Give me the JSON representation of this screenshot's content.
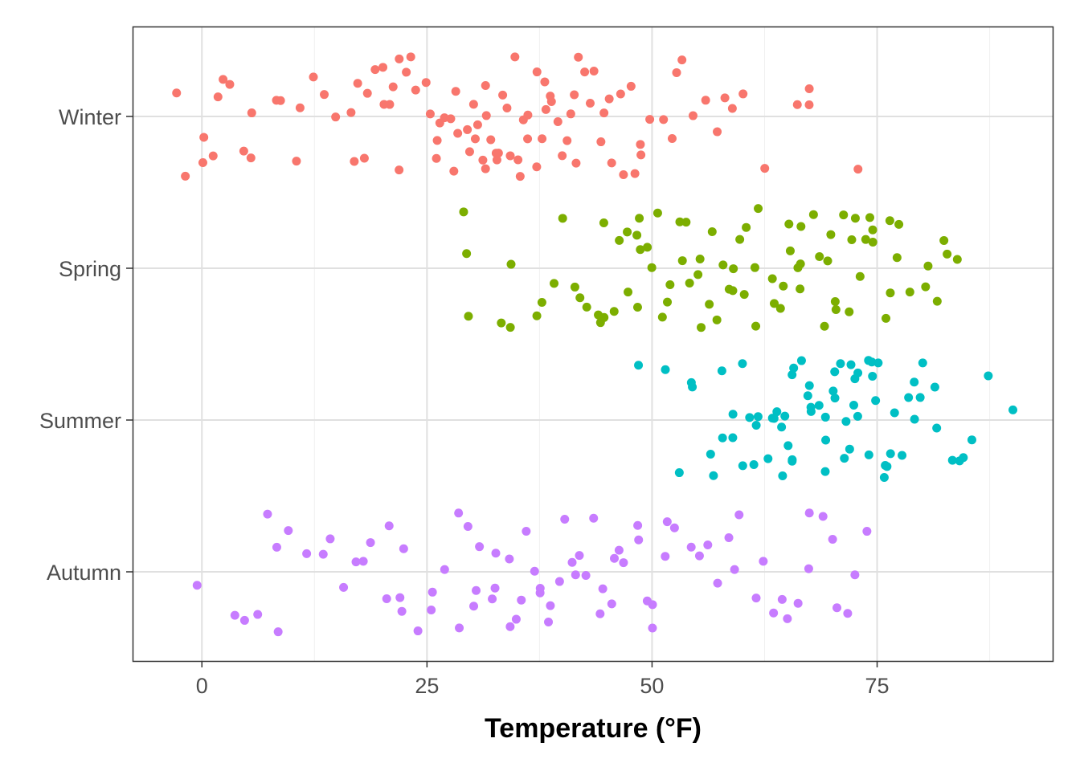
{
  "chart_data": {
    "type": "scatter",
    "subtype": "jittered strip plot",
    "title": "",
    "xlabel": "Temperature (°F)",
    "ylabel": "",
    "xlim": [
      -7.7,
      94.5
    ],
    "xticks": [
      0,
      25,
      50,
      75
    ],
    "xtick_labels": [
      "0",
      "25",
      "50",
      "75"
    ],
    "categories": [
      "Winter",
      "Spring",
      "Summer",
      "Autumn"
    ],
    "grid": true,
    "legend": "none",
    "series": [
      {
        "name": "Winter",
        "color": "#F8766D",
        "values": [
          -3,
          -2,
          0,
          0.5,
          1,
          1.5,
          2,
          3,
          5,
          5,
          6,
          8,
          9,
          10,
          11,
          12,
          14,
          15,
          16,
          17,
          17,
          18,
          18,
          19,
          20,
          20,
          21,
          21,
          22,
          22,
          23,
          23,
          24,
          25,
          25,
          26,
          26,
          27,
          27,
          28,
          28,
          28,
          29,
          29,
          30,
          30,
          30,
          31,
          31,
          31,
          32,
          32,
          32,
          33,
          33,
          33,
          34,
          34,
          34,
          35,
          35,
          35,
          36,
          36,
          36,
          37,
          37,
          38,
          38,
          38,
          39,
          39,
          40,
          40,
          40,
          41,
          41,
          42,
          42,
          43,
          43,
          44,
          44,
          45,
          45,
          46,
          46,
          47,
          48,
          48,
          49,
          49,
          50,
          51,
          52,
          53,
          53,
          55,
          56,
          57,
          58,
          59,
          60,
          62,
          66,
          67,
          68,
          73
        ]
      },
      {
        "name": "Spring",
        "color": "#7CAE00",
        "values": [
          28.5,
          29.5,
          30,
          33.5,
          34,
          34,
          37,
          38,
          39,
          40,
          41.5,
          42,
          43,
          44,
          44,
          45,
          45,
          46,
          46,
          47,
          47,
          48,
          48,
          49,
          49,
          50,
          50,
          51,
          51,
          52,
          52,
          53,
          53,
          54,
          54,
          55,
          55,
          56,
          56,
          57,
          57,
          58,
          58,
          59,
          59,
          60,
          60,
          61,
          61,
          62,
          62,
          63,
          63,
          64,
          64,
          65,
          65,
          66,
          66,
          67,
          67,
          68,
          68,
          69,
          69,
          70,
          70,
          71,
          71,
          72,
          72,
          73,
          73,
          74,
          74,
          75,
          75,
          76,
          76,
          77,
          77,
          78,
          79,
          80,
          81,
          82,
          83,
          83,
          84
        ]
      },
      {
        "name": "Summer",
        "color": "#00BFC4",
        "values": [
          49,
          51,
          53,
          54,
          55,
          56,
          57,
          58,
          58,
          59,
          59,
          60,
          60,
          61,
          61,
          62,
          62,
          63,
          63,
          63,
          64,
          64,
          64,
          65,
          65,
          65,
          66,
          66,
          66,
          67,
          67,
          67,
          68,
          68,
          68,
          69,
          69,
          69,
          70,
          70,
          70,
          71,
          71,
          71,
          72,
          72,
          72,
          73,
          73,
          73,
          74,
          74,
          74,
          75,
          75,
          75,
          76,
          76,
          76,
          77,
          77,
          78,
          78,
          79,
          79,
          80,
          80,
          81,
          82,
          83,
          84,
          85,
          86,
          87,
          90
        ]
      },
      {
        "name": "Autumn",
        "color": "#C77CFF",
        "values": [
          -1,
          4,
          5,
          6,
          7,
          8,
          8,
          10,
          12,
          13,
          14,
          16,
          17,
          18,
          19,
          20,
          21,
          22,
          22,
          23,
          24,
          25,
          26,
          27,
          28,
          28,
          29,
          30,
          30,
          31,
          32,
          32,
          33,
          34,
          34,
          35,
          35,
          36,
          37,
          37,
          38,
          38,
          39,
          40,
          40,
          41,
          42,
          42,
          43,
          43,
          44,
          45,
          45,
          46,
          46,
          47,
          48,
          48,
          49,
          50,
          50,
          51,
          52,
          53,
          54,
          55,
          56,
          57,
          58,
          59,
          60,
          61,
          62,
          63,
          64,
          65,
          66,
          67,
          68,
          69,
          70,
          71,
          72,
          73,
          74
        ]
      }
    ]
  }
}
